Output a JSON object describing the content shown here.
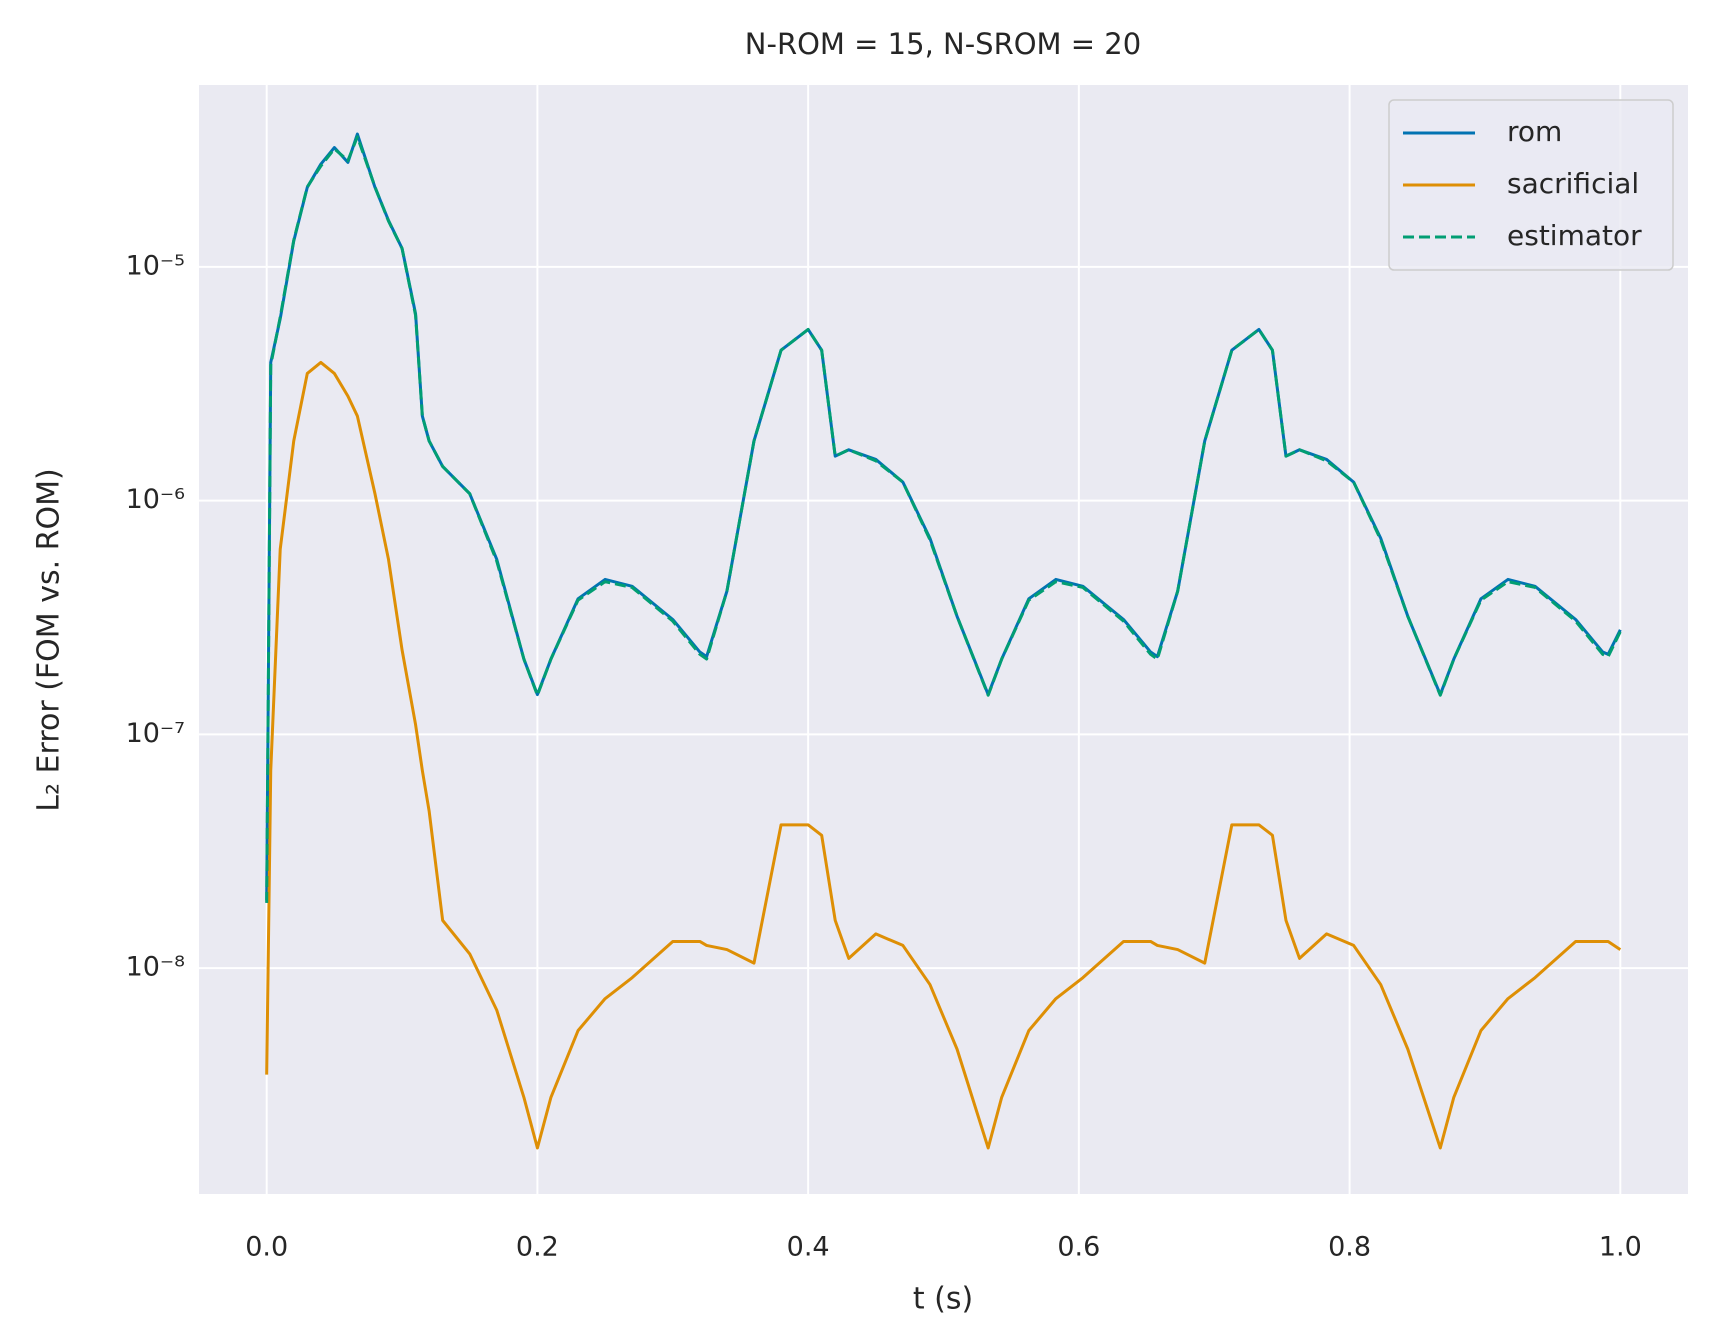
{
  "chart_data": {
    "type": "line",
    "title": "N-ROM = 15, N-SROM = 20",
    "xlabel": "t (s)",
    "ylabel": "L₂ Error (FOM vs. ROM)",
    "yscale": "log",
    "grid": true,
    "legend_loc": "upper right",
    "xlim": [
      -0.05,
      1.05
    ],
    "ylim": [
      1.08e-09,
      6e-05
    ],
    "xticks": [
      {
        "value": 0,
        "label": "0.0"
      },
      0.2,
      0.4,
      0.6,
      0.8,
      {
        "value": 1,
        "label": "1.0"
      }
    ],
    "yticks": [
      {
        "value": 1e-08,
        "label": "10⁻⁸"
      },
      {
        "value": 1e-07,
        "label": "10⁻⁷"
      },
      {
        "value": 1e-06,
        "label": "10⁻⁶"
      },
      {
        "value": 1e-05,
        "label": "10⁻⁵"
      }
    ],
    "x": [
      0,
      0.003,
      0.01,
      0.02,
      0.03,
      0.04,
      0.05,
      0.06,
      0.067,
      0.08,
      0.09,
      0.1,
      0.11,
      0.115,
      0.12,
      0.13,
      0.15,
      0.17,
      0.19,
      0.2,
      0.21,
      0.23,
      0.25,
      0.27,
      0.3,
      0.32,
      0.325,
      0.34,
      0.36,
      0.38,
      0.4,
      0.41,
      0.42,
      0.43,
      0.45,
      0.47,
      0.49,
      0.51,
      0.533,
      0.543,
      0.563,
      0.583,
      0.603,
      0.633,
      0.653,
      0.658,
      0.673,
      0.693,
      0.713,
      0.733,
      0.743,
      0.753,
      0.763,
      0.783,
      0.803,
      0.823,
      0.843,
      0.867,
      0.877,
      0.897,
      0.917,
      0.937,
      0.967,
      0.987,
      0.991,
      1
    ],
    "series": [
      {
        "name": "rom",
        "color": "#0173b2",
        "linestyle": "solid",
        "values": [
          1.95e-08,
          3.9e-06,
          6e-06,
          1.29e-05,
          2.19e-05,
          2.75e-05,
          3.24e-05,
          2.8e-05,
          3.7e-05,
          2.19e-05,
          1.58e-05,
          1.2e-05,
          6.3e-06,
          2.3e-06,
          1.8e-06,
          1.4e-06,
          1.07e-06,
          5.6e-07,
          2.1e-07,
          1.48e-07,
          2.1e-07,
          3.8e-07,
          4.6e-07,
          4.3e-07,
          3.1e-07,
          2.25e-07,
          2.15e-07,
          4.1e-07,
          1.8e-06,
          4.4e-06,
          5.4e-06,
          4.4e-06,
          1.55e-06,
          1.65e-06,
          1.5e-06,
          1.2e-06,
          6.9e-07,
          3.2e-07,
          1.48e-07,
          2.1e-07,
          3.8e-07,
          4.6e-07,
          4.3e-07,
          3.1e-07,
          2.25e-07,
          2.15e-07,
          4.1e-07,
          1.8e-06,
          4.4e-06,
          5.4e-06,
          4.4e-06,
          1.55e-06,
          1.65e-06,
          1.5e-06,
          1.2e-06,
          6.9e-07,
          3.2e-07,
          1.48e-07,
          2.1e-07,
          3.8e-07,
          4.6e-07,
          4.3e-07,
          3.1e-07,
          2.25e-07,
          2.2e-07,
          2.8e-07
        ]
      },
      {
        "name": "sacrificial",
        "color": "#de8f05",
        "linestyle": "solid",
        "values": [
          3.5e-09,
          7e-08,
          6.2e-07,
          1.8e-06,
          3.5e-06,
          3.9e-06,
          3.5e-06,
          2.8e-06,
          2.3e-06,
          1.07e-06,
          5.6e-07,
          2.3e-07,
          1.1e-07,
          7e-08,
          4.7e-08,
          1.6e-08,
          1.15e-08,
          6.6e-09,
          2.8e-09,
          1.7e-09,
          2.8e-09,
          5.4e-09,
          7.4e-09,
          9.1e-09,
          1.3e-08,
          1.3e-08,
          1.25e-08,
          1.2e-08,
          1.05e-08,
          4.1e-08,
          4.1e-08,
          3.7e-08,
          1.6e-08,
          1.1e-08,
          1.4e-08,
          1.25e-08,
          8.5e-09,
          4.5e-09,
          1.7e-09,
          2.8e-09,
          5.4e-09,
          7.4e-09,
          9.1e-09,
          1.3e-08,
          1.3e-08,
          1.25e-08,
          1.2e-08,
          1.05e-08,
          4.1e-08,
          4.1e-08,
          3.7e-08,
          1.6e-08,
          1.1e-08,
          1.4e-08,
          1.25e-08,
          8.5e-09,
          4.5e-09,
          1.7e-09,
          2.8e-09,
          5.4e-09,
          7.4e-09,
          9.1e-09,
          1.3e-08,
          1.3e-08,
          1.3e-08,
          1.2e-08
        ]
      },
      {
        "name": "estimator",
        "color": "#029e73",
        "linestyle": "dashed",
        "values": [
          1.9e-08,
          3.8e-06,
          6.1e-06,
          1.3e-05,
          2.2e-05,
          2.7e-05,
          3.2e-05,
          2.85e-05,
          3.6e-05,
          2.2e-05,
          1.57e-05,
          1.2e-05,
          6.2e-06,
          2.3e-06,
          1.8e-06,
          1.4e-06,
          1.07e-06,
          5.5e-07,
          2.1e-07,
          1.47e-07,
          2.1e-07,
          3.75e-07,
          4.5e-07,
          4.25e-07,
          3.05e-07,
          2.2e-07,
          2.1e-07,
          4.1e-07,
          1.8e-06,
          4.4e-06,
          5.4e-06,
          4.4e-06,
          1.55e-06,
          1.65e-06,
          1.48e-06,
          1.2e-06,
          6.8e-07,
          3.2e-07,
          1.47e-07,
          2.1e-07,
          3.75e-07,
          4.5e-07,
          4.25e-07,
          3.05e-07,
          2.2e-07,
          2.1e-07,
          4.1e-07,
          1.8e-06,
          4.4e-06,
          5.4e-06,
          4.4e-06,
          1.55e-06,
          1.65e-06,
          1.48e-06,
          1.2e-06,
          6.8e-07,
          3.2e-07,
          1.47e-07,
          2.1e-07,
          3.75e-07,
          4.5e-07,
          4.25e-07,
          3.05e-07,
          2.2e-07,
          2.15e-07,
          2.75e-07
        ]
      }
    ]
  }
}
